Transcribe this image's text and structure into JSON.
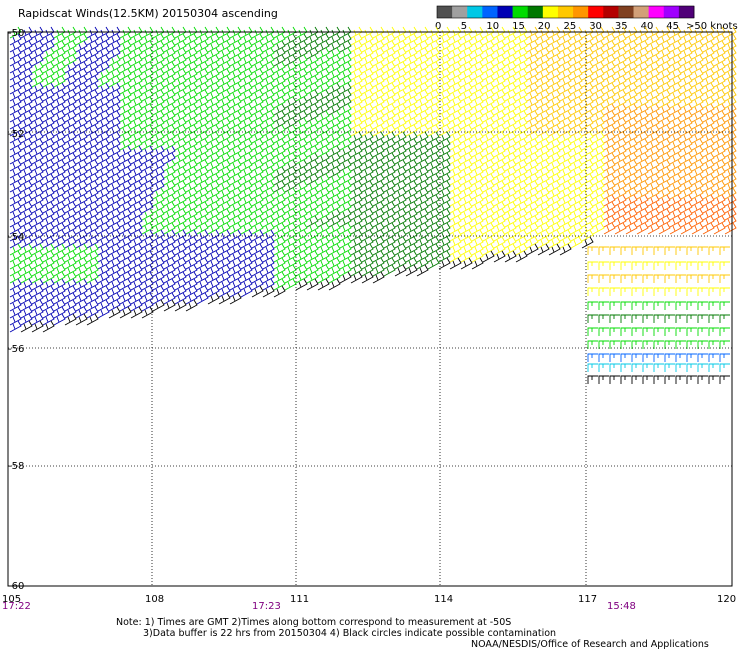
{
  "title": "Rapidscat Winds(12.5KM) 20150304 ascending",
  "legend": {
    "colors": [
      "#505050",
      "#a0a0a0",
      "#00c8e6",
      "#0064ff",
      "#0000b4",
      "#00dc00",
      "#007800",
      "#ffff00",
      "#ffc800",
      "#ff9600",
      "#ff0000",
      "#b40000",
      "#804020",
      "#d2a078",
      "#ff00ff",
      "#a000ff",
      "#500078"
    ],
    "labels": [
      "0",
      "5",
      "10",
      "15",
      "20",
      "25",
      "30",
      "35",
      "40",
      "45",
      ">50 knots"
    ]
  },
  "lon_labels": [
    "105",
    "108",
    "111",
    "114",
    "117",
    "120"
  ],
  "lat_labels": [
    "-50",
    "-52",
    "-54",
    "-56",
    "-58",
    "-60"
  ],
  "time_labels": [
    "17:22",
    "17:23",
    "15:48"
  ],
  "notes": [
    "Note: 1) Times are GMT 2)Times along bottom correspond to measurement at -50S",
    "3)Data buffer is 22 hrs from 20150304 4) Black circles indicate possible contamination",
    "NOAA/NESDIS/Office of Research and Applications"
  ]
}
